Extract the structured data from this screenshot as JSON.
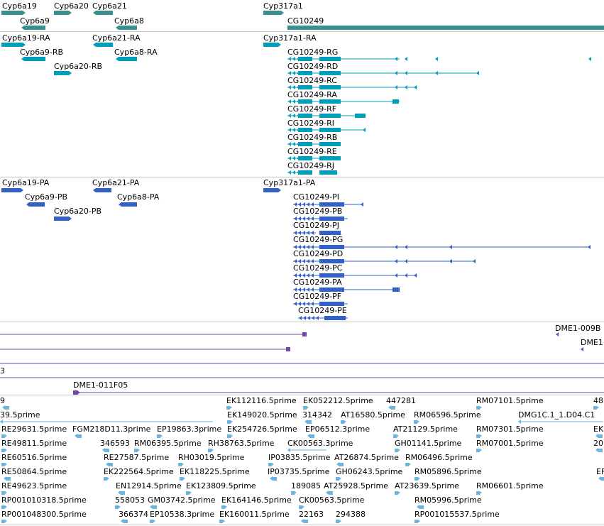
{
  "colors": {
    "gene": "#3a8f8f",
    "transcript": "#009eb8",
    "protein": "#3060c8",
    "clone": "#6e48a8",
    "est": "#6ab4e0",
    "separator": "#c8c8c8"
  },
  "genes": [
    "Cyp6a19",
    "Cyp6a20",
    "Cyp6a21",
    "Cyp6a9",
    "Cyp6a8",
    "Cyp317a1",
    "CG10249"
  ],
  "transcripts": [
    "Cyp6a19-RA",
    "Cyp6a21-RA",
    "Cyp6a9-RB",
    "Cyp6a8-RA",
    "Cyp6a20-RB",
    "Cyp317a1-RA",
    "CG10249-RG",
    "CG10249-RD",
    "CG10249-RC",
    "CG10249-RA",
    "CG10249-RF",
    "CG10249-RI",
    "CG10249-RB",
    "CG10249-RE",
    "CG10249-RJ"
  ],
  "proteins": [
    "Cyp6a19-PA",
    "Cyp6a21-PA",
    "Cyp6a9-PB",
    "Cyp6a8-PA",
    "Cyp6a20-PB",
    "Cyp317a1-PA",
    "CG10249-PI",
    "CG10249-PB",
    "CG10249-PJ",
    "CG10249-PG",
    "CG10249-PD",
    "CG10249-PC",
    "CG10249-PA",
    "CG10249-PF",
    "CG10249-PE"
  ],
  "clones": [
    "DME1-009B",
    "DME1",
    "3",
    "DME1-011F05"
  ],
  "ests": [
    "9",
    "EK112116.5prime",
    "EK052212.5prime",
    "447281",
    "RM07101.5prime",
    "48",
    "39.5prime",
    "EK149020.5prime",
    "314342",
    "AT16580.5prime",
    "RM06596.5prime",
    "DMG1C.1_1.D04.C1",
    "RE29631.5prime",
    "FGM218D11.3prime",
    "EP19863.3prime",
    "EK254726.5prime",
    "EP06512.3prime",
    "AT21129.5prime",
    "RM07301.5prime",
    "EK",
    "RE49811.5prime",
    "346593",
    "RM06395.5prime",
    "RH38763.5prime",
    "CK00563.3prime",
    "GH01141.5prime",
    "RM07001.5prime",
    "20",
    "RE60516.5prime",
    "RE27587.5prime",
    "RH03019.5prime",
    "IP03835.5prime",
    "AT26874.5prime",
    "RM06496.5prime",
    "RE50864.5prime",
    "EK222564.5prime",
    "EK118225.5prime",
    "IP03735.5prime",
    "GH06243.5prime",
    "RM05896.5prime",
    "EF",
    "RE49623.5prime",
    "EN12914.5prime",
    "EK123809.5prime",
    "189085",
    "AT25928.5prime",
    "AT23639.5prime",
    "RM06601.5prime",
    "RP001010318.5prime",
    "558053",
    "GM03742.5prime",
    "EK164146.5prime",
    "CK00563.5prime",
    "RM05996.5prime",
    "RP001048300.5prime",
    "366374",
    "EP10538.3prime",
    "EK160011.5prime",
    "22163",
    "294388",
    "RP001015537.5prime"
  ]
}
